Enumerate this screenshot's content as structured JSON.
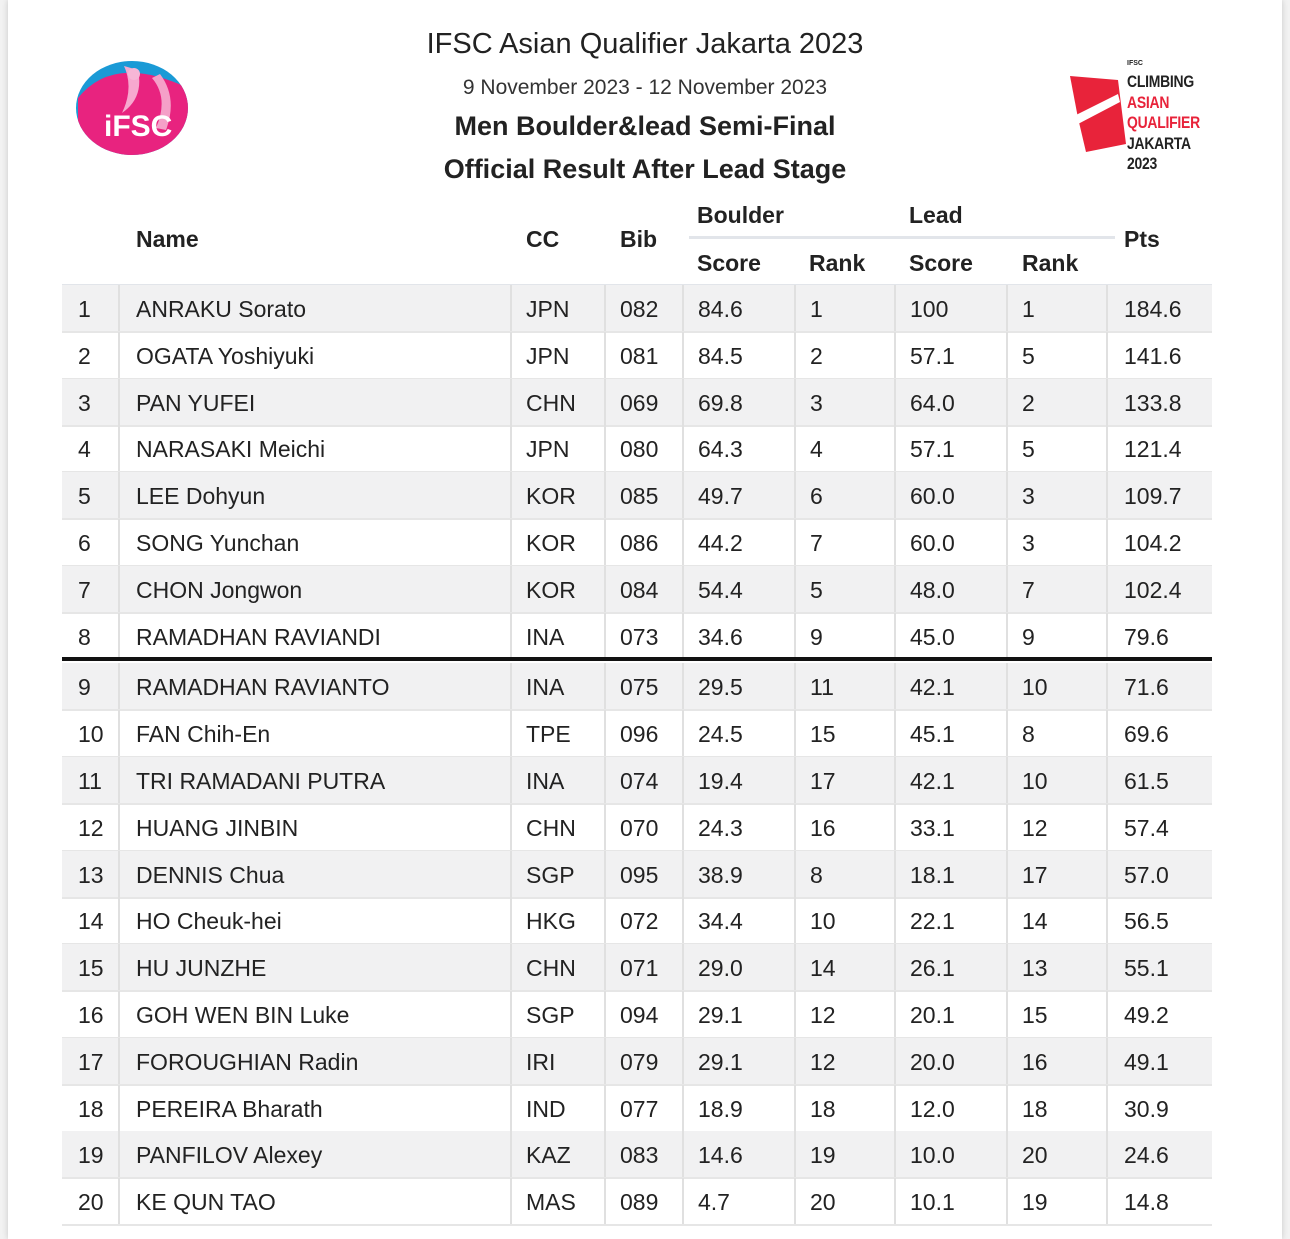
{
  "header": {
    "title": "IFSC Asian Qualifier Jakarta 2023",
    "dates": "9 November 2023 - 12 November 2023",
    "event": "Men Boulder&lead Semi-Final",
    "stage": "Official Result After Lead Stage"
  },
  "logos": {
    "ifsc_text": "iFSC",
    "event_small": "IFSC",
    "event_words": [
      "CLIMBING",
      "ASIAN",
      "QUALIFIER",
      "JAKARTA 2023"
    ]
  },
  "colors": {
    "accent_red": "#e8233a",
    "ifsc_pink": "#e8237f",
    "ifsc_blue": "#1a9ad6"
  },
  "table": {
    "headers": {
      "name": "Name",
      "cc": "CC",
      "bib": "Bib",
      "boulder": "Boulder",
      "lead": "Lead",
      "boulder_score": "Score",
      "boulder_rank": "Rank",
      "lead_score": "Score",
      "lead_rank": "Rank",
      "pts": "Pts"
    },
    "rows": [
      [
        "1",
        "ANRAKU Sorato",
        "JPN",
        "082",
        "84.6",
        "1",
        "100",
        "1",
        "184.6"
      ],
      [
        "2",
        "OGATA Yoshiyuki",
        "JPN",
        "081",
        "84.5",
        "2",
        "57.1",
        "5",
        "141.6"
      ],
      [
        "3",
        "PAN YUFEI",
        "CHN",
        "069",
        "69.8",
        "3",
        "64.0",
        "2",
        "133.8"
      ],
      [
        "4",
        "NARASAKI Meichi",
        "JPN",
        "080",
        "64.3",
        "4",
        "57.1",
        "5",
        "121.4"
      ],
      [
        "5",
        "LEE Dohyun",
        "KOR",
        "085",
        "49.7",
        "6",
        "60.0",
        "3",
        "109.7"
      ],
      [
        "6",
        "SONG Yunchan",
        "KOR",
        "086",
        "44.2",
        "7",
        "60.0",
        "3",
        "104.2"
      ],
      [
        "7",
        "CHON Jongwon",
        "KOR",
        "084",
        "54.4",
        "5",
        "48.0",
        "7",
        "102.4"
      ],
      [
        "8",
        "RAMADHAN RAVIANDI",
        "INA",
        "073",
        "34.6",
        "9",
        "45.0",
        "9",
        "79.6"
      ],
      [
        "9",
        "RAMADHAN RAVIANTO",
        "INA",
        "075",
        "29.5",
        "11",
        "42.1",
        "10",
        "71.6"
      ],
      [
        "10",
        "FAN Chih-En",
        "TPE",
        "096",
        "24.5",
        "15",
        "45.1",
        "8",
        "69.6"
      ],
      [
        "11",
        "TRI RAMADANI PUTRA",
        "INA",
        "074",
        "19.4",
        "17",
        "42.1",
        "10",
        "61.5"
      ],
      [
        "12",
        "HUANG JINBIN",
        "CHN",
        "070",
        "24.3",
        "16",
        "33.1",
        "12",
        "57.4"
      ],
      [
        "13",
        "DENNIS Chua",
        "SGP",
        "095",
        "38.9",
        "8",
        "18.1",
        "17",
        "57.0"
      ],
      [
        "14",
        "HO Cheuk-hei",
        "HKG",
        "072",
        "34.4",
        "10",
        "22.1",
        "14",
        "56.5"
      ],
      [
        "15",
        "HU JUNZHE",
        "CHN",
        "071",
        "29.0",
        "14",
        "26.1",
        "13",
        "55.1"
      ],
      [
        "16",
        "GOH WEN BIN Luke",
        "SGP",
        "094",
        "29.1",
        "12",
        "20.1",
        "15",
        "49.2"
      ],
      [
        "17",
        "FOROUGHIAN Radin",
        "IRI",
        "079",
        "29.1",
        "12",
        "20.0",
        "16",
        "49.1"
      ],
      [
        "18",
        "PEREIRA Bharath",
        "IND",
        "077",
        "18.9",
        "18",
        "12.0",
        "18",
        "30.9"
      ],
      [
        "19",
        "PANFILOV Alexey",
        "KAZ",
        "083",
        "14.6",
        "19",
        "10.0",
        "20",
        "24.6"
      ],
      [
        "20",
        "KE QUN TAO",
        "MAS",
        "089",
        "4.7",
        "20",
        "10.1",
        "19",
        "14.8"
      ]
    ]
  }
}
